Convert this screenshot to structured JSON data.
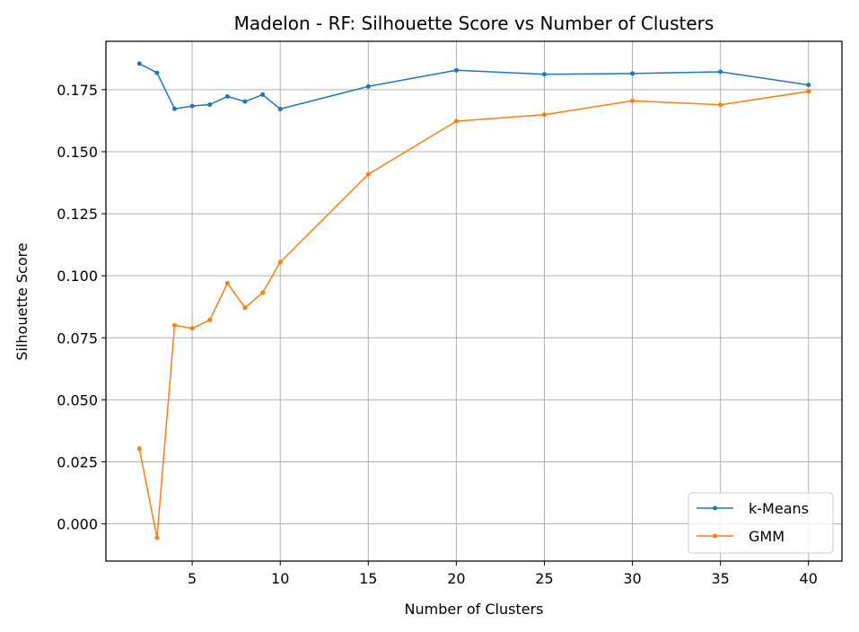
{
  "chart_data": {
    "type": "line",
    "title": "Madelon - RF: Silhouette Score vs Number of Clusters",
    "xlabel": "Number of Clusters",
    "ylabel": "Silhouette Score",
    "xlim": [
      0.1,
      41.9
    ],
    "ylim": [
      -0.015,
      0.1945
    ],
    "xticks": [
      5,
      10,
      15,
      20,
      25,
      30,
      35,
      40
    ],
    "xtick_labels": [
      "5",
      "10",
      "15",
      "20",
      "25",
      "30",
      "35",
      "40"
    ],
    "yticks": [
      0.0,
      0.025,
      0.05,
      0.075,
      0.1,
      0.125,
      0.15,
      0.175
    ],
    "ytick_labels": [
      "0.000",
      "0.025",
      "0.050",
      "0.075",
      "0.100",
      "0.125",
      "0.150",
      "0.175"
    ],
    "grid": true,
    "legend_position": "lower-right",
    "x": [
      2,
      3,
      4,
      5,
      6,
      7,
      8,
      9,
      10,
      15,
      20,
      25,
      30,
      35,
      40
    ],
    "series": [
      {
        "name": "k-Means",
        "color": "#1f77b4",
        "values": [
          0.1855,
          0.1818,
          0.1673,
          0.1684,
          0.169,
          0.1723,
          0.1702,
          0.173,
          0.1672,
          0.1763,
          0.1828,
          0.1812,
          0.1815,
          0.1822,
          0.1769
        ]
      },
      {
        "name": "GMM",
        "color": "#ff7f0e",
        "values": [
          0.0303,
          -0.0056,
          0.08,
          0.0788,
          0.0822,
          0.097,
          0.0871,
          0.0932,
          0.1055,
          0.1409,
          0.1623,
          0.1649,
          0.1705,
          0.1689,
          0.1743
        ]
      }
    ]
  }
}
